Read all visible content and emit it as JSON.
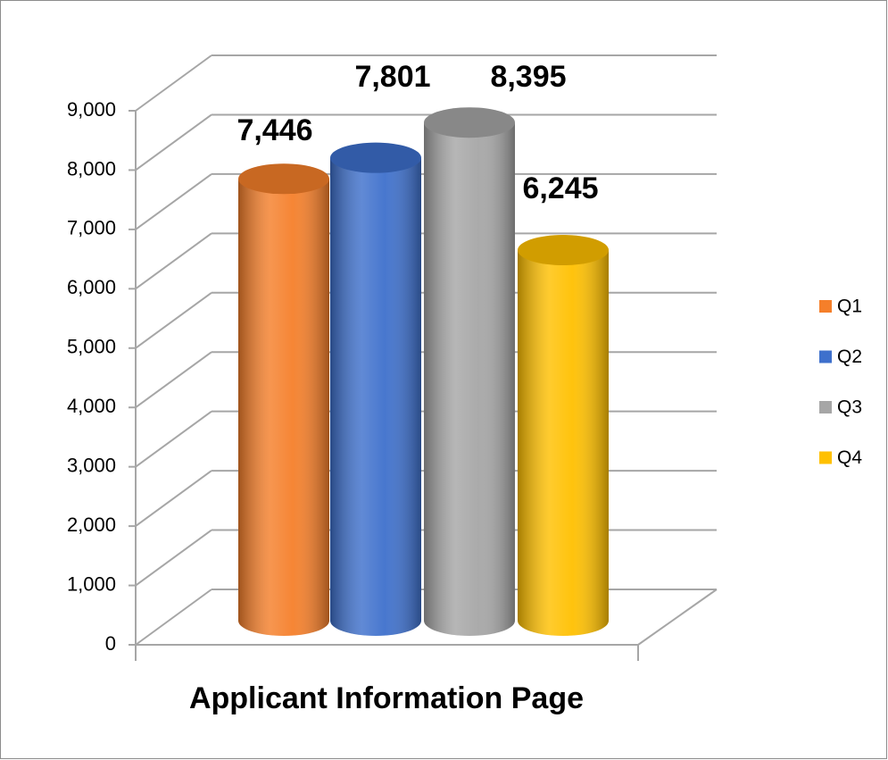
{
  "chart_data": {
    "type": "bar3d",
    "categories": [
      "Applicant Information Page"
    ],
    "series": [
      {
        "name": "Q1",
        "color": "#f57f2a",
        "values": [
          7446
        ],
        "value_labels": [
          "7,446"
        ]
      },
      {
        "name": "Q2",
        "color": "#3e70cc",
        "values": [
          7801
        ],
        "value_labels": [
          "7,801"
        ]
      },
      {
        "name": "Q3",
        "color": "#a6a6a6",
        "values": [
          8395
        ],
        "value_labels": [
          "8,395"
        ]
      },
      {
        "name": "Q4",
        "color": "#ffc000",
        "values": [
          6245
        ],
        "value_labels": [
          "6,245"
        ]
      }
    ],
    "ylim": [
      0,
      9000
    ],
    "yticks": [
      0,
      {
        "value": 1000,
        "label": "1,000"
      },
      {
        "value": 2000,
        "label": "2,000"
      },
      {
        "value": 3000,
        "label": "3,000"
      },
      {
        "value": 4000,
        "label": "4,000"
      },
      {
        "value": 5000,
        "label": "5,000"
      },
      {
        "value": 6000,
        "label": "6,000"
      },
      {
        "value": 7000,
        "label": "7,000"
      },
      {
        "value": 8000,
        "label": "8,000"
      },
      {
        "value": 9000,
        "label": "9,000"
      }
    ],
    "grid": true,
    "legend": "right"
  }
}
